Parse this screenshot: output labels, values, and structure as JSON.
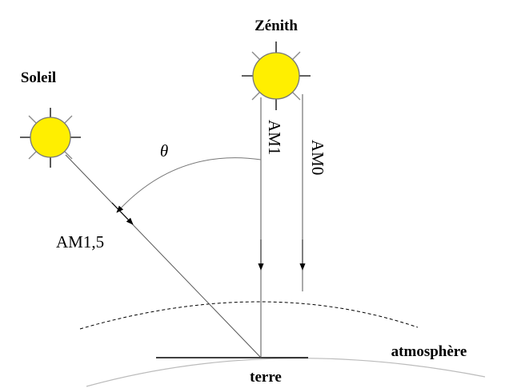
{
  "labels": {
    "zenith": "Zénith",
    "soleil": "Soleil",
    "theta": "θ",
    "am1": "AM1",
    "am0": "AM0",
    "am15": "AM1,5",
    "atmosphere": "atmosphère",
    "terre": "terre"
  }
}
